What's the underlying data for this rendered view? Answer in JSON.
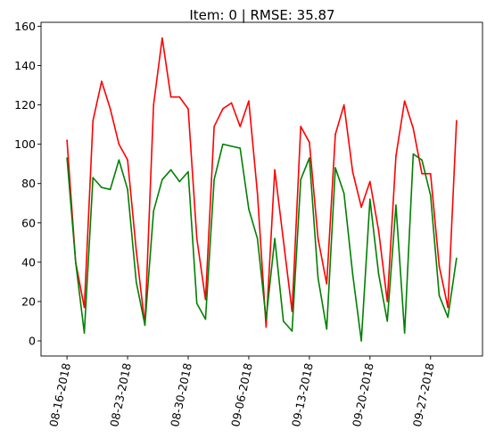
{
  "chart_data": {
    "type": "line",
    "title": "Item: 0 | RMSE: 35.87",
    "xlabel": "",
    "ylabel": "",
    "ylim": [
      -7.7,
      162
    ],
    "yticks": [
      0,
      20,
      40,
      60,
      80,
      100,
      120,
      140,
      160
    ],
    "x_start": "2018-08-16",
    "xticks": [
      {
        "date": "2018-08-16",
        "label": "08-16-2018"
      },
      {
        "date": "2018-08-23",
        "label": "08-23-2018"
      },
      {
        "date": "2018-08-30",
        "label": "08-30-2018"
      },
      {
        "date": "2018-09-06",
        "label": "09-06-2018"
      },
      {
        "date": "2018-09-13",
        "label": "09-13-2018"
      },
      {
        "date": "2018-09-20",
        "label": "09-20-2018"
      },
      {
        "date": "2018-09-27",
        "label": "09-27-2018"
      }
    ],
    "xlim": [
      "2018-08-13",
      "2018-10-03"
    ],
    "grid": false,
    "legend": "none",
    "series": [
      {
        "color": "#ff0000",
        "values": [
          102,
          40,
          17,
          112,
          132,
          118,
          100,
          92,
          46,
          8,
          120,
          154,
          124,
          124,
          118,
          52,
          21,
          109,
          118,
          121,
          109,
          122,
          75,
          7,
          87,
          51,
          15,
          109,
          101,
          52,
          29,
          105,
          120,
          86,
          68,
          81,
          56,
          20,
          94,
          122,
          108,
          85,
          85,
          38,
          17,
          112
        ]
      },
      {
        "color": "#008000",
        "values": [
          93,
          40,
          4,
          83,
          78,
          77,
          92,
          77,
          30,
          8,
          66,
          82,
          87,
          81,
          86,
          19,
          11,
          82,
          100,
          99,
          98,
          67,
          52,
          11,
          52,
          10,
          5,
          82,
          93,
          32,
          6,
          88,
          75,
          34,
          0,
          72,
          34,
          10,
          69,
          4,
          95,
          92,
          74,
          23,
          12,
          42
        ]
      }
    ]
  }
}
